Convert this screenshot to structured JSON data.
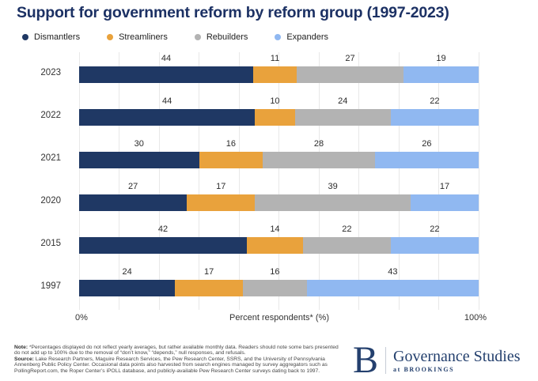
{
  "title": "Support for government reform by reform group (1997-2023)",
  "chart_data": {
    "type": "bar",
    "stacked": true,
    "orientation": "horizontal",
    "categories": [
      "2023",
      "2022",
      "2021",
      "2020",
      "2015",
      "1997"
    ],
    "series": [
      {
        "name": "Dismantlers",
        "color": "#1f3864",
        "values": [
          44,
          44,
          30,
          27,
          42,
          24
        ]
      },
      {
        "name": "Streamliners",
        "color": "#e9a23c",
        "values": [
          11,
          10,
          16,
          17,
          14,
          17
        ]
      },
      {
        "name": "Rebuilders",
        "color": "#b3b3b3",
        "values": [
          27,
          24,
          28,
          39,
          22,
          16
        ]
      },
      {
        "name": "Expanders",
        "color": "#90b8f1",
        "values": [
          19,
          22,
          26,
          17,
          22,
          43
        ]
      }
    ],
    "xlabel": "Percent respondents* (%)",
    "xlim": [
      0,
      100
    ],
    "x_ticks": [
      "0%",
      "100%"
    ],
    "grid": true,
    "legend_position": "top"
  },
  "footer": {
    "note_label": "Note:",
    "note_text": " *Percentages displayed do not reflect yearly averages, but rather available monthly data. Readers should note some bars presented do not add up to 100% due to the removal of “don’t know,” “depends,” null responses, and refusals.",
    "source_label": "Source:",
    "source_text": " Lake Research Partners, Maguire Research Services, the Pew Research Center, SSRS, and the University of Pennsylvania Annenberg Public Policy Center. Occasional data points also harvested from search engines managed by survey aggregators such as PollingReport.com, the Roper Center’s iPOLL database, and publicly-available Pew Research Center surveys dating back to 1997."
  },
  "logo": {
    "mark": "B",
    "org": "Governance Studies",
    "sub": "at BROOKINGS",
    "color": "#24406e"
  },
  "colors": {
    "title_navy": "#1c3164",
    "gridline": "#e8e8e8"
  }
}
